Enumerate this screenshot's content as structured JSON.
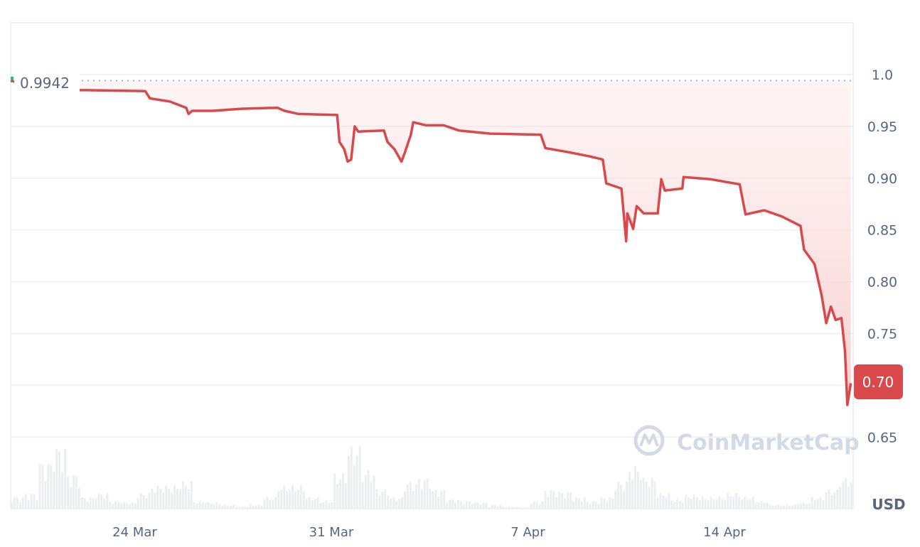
{
  "chart_data": {
    "type": "line",
    "currency_label": "USD",
    "baseline_label": "0.9942",
    "baseline_value": 0.9942,
    "current_price_label": "0.70",
    "current_price": 0.7,
    "watermark": "CoinMarketCap",
    "colors": {
      "line": "#d9484a",
      "fill": "#fde8e8",
      "badge": "#d9484a",
      "volume": "#eceef2",
      "grid": "#eff2f5",
      "text": "#58667e"
    },
    "grid": true,
    "ylim": [
      0.62,
      1.05
    ],
    "yticks": [
      1.0,
      0.95,
      0.9,
      0.85,
      0.8,
      0.75,
      0.7,
      0.65
    ],
    "ytick_labels": [
      "1.0",
      "0.95",
      "0.90",
      "0.85",
      "0.80",
      "0.75",
      "0.70",
      "0.65"
    ],
    "xlim": [
      "Mar 19 14:00",
      "Apr 18 14:00"
    ],
    "xticks": [
      "Mar 24 00:00",
      "Mar 31 00:00",
      "Apr 7 00:00",
      "Apr 14 00:00"
    ],
    "xtick_labels": [
      "24 Mar",
      "31 Mar",
      "7 Apr",
      "14 Apr"
    ],
    "series": [
      {
        "points": [
          [
            "Mar 19 14:00",
            0.994
          ],
          [
            "Mar 21 02:00",
            0.985
          ],
          [
            "Mar 22 05:00",
            0.985
          ],
          [
            "Mar 24 09:00",
            0.984
          ],
          [
            "Mar 24 13:00",
            0.977
          ],
          [
            "Mar 25 06:00",
            0.974
          ],
          [
            "Mar 25 20:00",
            0.968
          ],
          [
            "Mar 25 22:00",
            0.962
          ],
          [
            "Mar 26 01:00",
            0.965
          ],
          [
            "Mar 26 19:00",
            0.965
          ],
          [
            "Mar 27 19:00",
            0.967
          ],
          [
            "Mar 29 02:00",
            0.968
          ],
          [
            "Mar 29 08:00",
            0.965
          ],
          [
            "Mar 29 20:00",
            0.962
          ],
          [
            "Mar 31 05:00",
            0.961
          ],
          [
            "Mar 31 07:00",
            0.935
          ],
          [
            "Mar 31 11:00",
            0.928
          ],
          [
            "Mar 31 14:00",
            0.916
          ],
          [
            "Mar 31 17:00",
            0.918
          ],
          [
            "Mar 31 20:00",
            0.95
          ],
          [
            "Mar 31 23:00",
            0.945
          ],
          [
            "Apr 1 21:00",
            0.946
          ],
          [
            "Apr 2 00:00",
            0.935
          ],
          [
            "Apr 2 06:00",
            0.928
          ],
          [
            "Apr 2 12:00",
            0.916
          ],
          [
            "Apr 2 15:00",
            0.925
          ],
          [
            "Apr 2 20:00",
            0.942
          ],
          [
            "Apr 2 22:00",
            0.954
          ],
          [
            "Apr 3 09:00",
            0.951
          ],
          [
            "Apr 4 00:00",
            0.951
          ],
          [
            "Apr 4 13:00",
            0.946
          ],
          [
            "Apr 5 16:00",
            0.943
          ],
          [
            "Apr 7 11:00",
            0.942
          ],
          [
            "Apr 7 15:00",
            0.929
          ],
          [
            "Apr 8 11:00",
            0.925
          ],
          [
            "Apr 9 05:00",
            0.921
          ],
          [
            "Apr 9 16:00",
            0.918
          ],
          [
            "Apr 9 19:00",
            0.895
          ],
          [
            "Apr 10 08:00",
            0.89
          ],
          [
            "Apr 10 12:00",
            0.839
          ],
          [
            "Apr 10 13:00",
            0.866
          ],
          [
            "Apr 10 18:00",
            0.851
          ],
          [
            "Apr 10 21:00",
            0.873
          ],
          [
            "Apr 11 03:00",
            0.866
          ],
          [
            "Apr 11 15:00",
            0.866
          ],
          [
            "Apr 11 18:00",
            0.899
          ],
          [
            "Apr 11 21:00",
            0.888
          ],
          [
            "Apr 12 12:00",
            0.89
          ],
          [
            "Apr 12 13:00",
            0.901
          ],
          [
            "Apr 13 12:00",
            0.899
          ],
          [
            "Apr 14 13:00",
            0.894
          ],
          [
            "Apr 14 18:00",
            0.865
          ],
          [
            "Apr 15 10:00",
            0.869
          ],
          [
            "Apr 16 01:00",
            0.863
          ],
          [
            "Apr 16 17:00",
            0.854
          ],
          [
            "Apr 16 20:00",
            0.831
          ],
          [
            "Apr 17 05:00",
            0.817
          ],
          [
            "Apr 17 11:00",
            0.787
          ],
          [
            "Apr 17 15:00",
            0.76
          ],
          [
            "Apr 17 19:00",
            0.776
          ],
          [
            "Apr 17 23:00",
            0.763
          ],
          [
            "Apr 18 04:00",
            0.765
          ],
          [
            "Apr 18 07:00",
            0.733
          ],
          [
            "Apr 18 09:00",
            0.681
          ],
          [
            "Apr 18 12:00",
            0.702
          ]
        ]
      }
    ],
    "volume_relative": [
      15,
      20,
      60,
      80,
      45,
      15,
      20,
      10,
      8,
      20,
      30,
      30,
      35,
      10,
      8,
      5,
      3,
      5,
      15,
      30,
      30,
      15,
      10,
      45,
      80,
      50,
      25,
      15,
      35,
      40,
      25,
      12,
      10,
      8,
      5,
      3,
      2,
      10,
      25,
      22,
      15,
      10,
      15,
      35,
      55,
      40,
      20,
      12,
      18,
      15,
      15,
      20,
      15,
      10,
      5,
      5,
      8,
      15,
      25,
      40
    ]
  }
}
